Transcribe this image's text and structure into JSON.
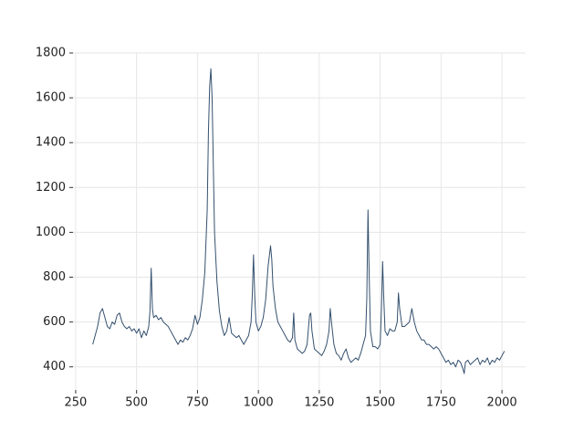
{
  "chart_data": {
    "type": "line",
    "color": "#34506e",
    "grid": true,
    "xlim": [
      239,
      2097
    ],
    "ylim": [
      297,
      1800
    ],
    "xticks": [
      250,
      500,
      750,
      1000,
      1250,
      1500,
      1750,
      2000
    ],
    "yticks": [
      400,
      600,
      800,
      1000,
      1200,
      1400,
      1600,
      1800
    ],
    "x": [
      320,
      330,
      340,
      350,
      360,
      370,
      380,
      390,
      400,
      410,
      420,
      430,
      440,
      450,
      460,
      470,
      480,
      490,
      500,
      510,
      520,
      530,
      540,
      550,
      555,
      560,
      565,
      570,
      580,
      590,
      600,
      610,
      620,
      630,
      640,
      650,
      660,
      670,
      680,
      690,
      700,
      710,
      720,
      730,
      740,
      750,
      760,
      770,
      780,
      790,
      795,
      800,
      805,
      810,
      815,
      820,
      830,
      840,
      850,
      860,
      870,
      880,
      890,
      900,
      910,
      920,
      930,
      940,
      950,
      960,
      970,
      975,
      980,
      985,
      990,
      1000,
      1010,
      1020,
      1030,
      1040,
      1050,
      1055,
      1060,
      1070,
      1080,
      1090,
      1100,
      1110,
      1120,
      1130,
      1140,
      1145,
      1150,
      1160,
      1170,
      1180,
      1190,
      1200,
      1210,
      1215,
      1220,
      1230,
      1240,
      1250,
      1260,
      1270,
      1280,
      1290,
      1295,
      1300,
      1310,
      1320,
      1330,
      1340,
      1350,
      1360,
      1370,
      1380,
      1390,
      1400,
      1410,
      1420,
      1430,
      1440,
      1445,
      1450,
      1455,
      1460,
      1470,
      1480,
      1490,
      1500,
      1505,
      1510,
      1515,
      1520,
      1530,
      1540,
      1550,
      1560,
      1570,
      1575,
      1580,
      1590,
      1600,
      1610,
      1620,
      1630,
      1640,
      1650,
      1660,
      1670,
      1680,
      1690,
      1700,
      1710,
      1720,
      1730,
      1740,
      1750,
      1760,
      1770,
      1780,
      1790,
      1800,
      1810,
      1820,
      1830,
      1840,
      1845,
      1850,
      1860,
      1870,
      1880,
      1890,
      1900,
      1910,
      1920,
      1930,
      1940,
      1950,
      1960,
      1970,
      1980,
      1990,
      2000,
      2010
    ],
    "values": [
      500,
      540,
      580,
      640,
      660,
      620,
      580,
      570,
      600,
      590,
      630,
      640,
      600,
      580,
      570,
      580,
      560,
      570,
      550,
      570,
      530,
      560,
      540,
      580,
      650,
      840,
      660,
      620,
      630,
      610,
      620,
      600,
      590,
      580,
      560,
      540,
      520,
      500,
      520,
      510,
      530,
      520,
      540,
      570,
      630,
      590,
      620,
      700,
      820,
      1100,
      1450,
      1650,
      1730,
      1600,
      1300,
      1000,
      780,
      650,
      580,
      540,
      560,
      620,
      550,
      540,
      530,
      540,
      520,
      500,
      520,
      540,
      600,
      720,
      900,
      720,
      600,
      560,
      580,
      620,
      700,
      850,
      940,
      880,
      760,
      660,
      600,
      580,
      560,
      540,
      520,
      510,
      530,
      640,
      520,
      480,
      470,
      460,
      470,
      500,
      630,
      640,
      560,
      480,
      470,
      460,
      450,
      470,
      500,
      560,
      660,
      600,
      500,
      460,
      450,
      430,
      460,
      480,
      440,
      420,
      430,
      440,
      430,
      460,
      500,
      540,
      700,
      1100,
      800,
      560,
      490,
      490,
      480,
      500,
      650,
      870,
      700,
      560,
      540,
      570,
      560,
      560,
      600,
      730,
      660,
      580,
      580,
      590,
      600,
      660,
      600,
      560,
      540,
      520,
      520,
      500,
      500,
      490,
      480,
      490,
      480,
      460,
      440,
      420,
      430,
      410,
      420,
      400,
      430,
      420,
      390,
      370,
      420,
      430,
      410,
      420,
      430,
      440,
      410,
      430,
      420,
      440,
      410,
      430,
      420,
      440,
      430,
      450,
      470
    ]
  }
}
